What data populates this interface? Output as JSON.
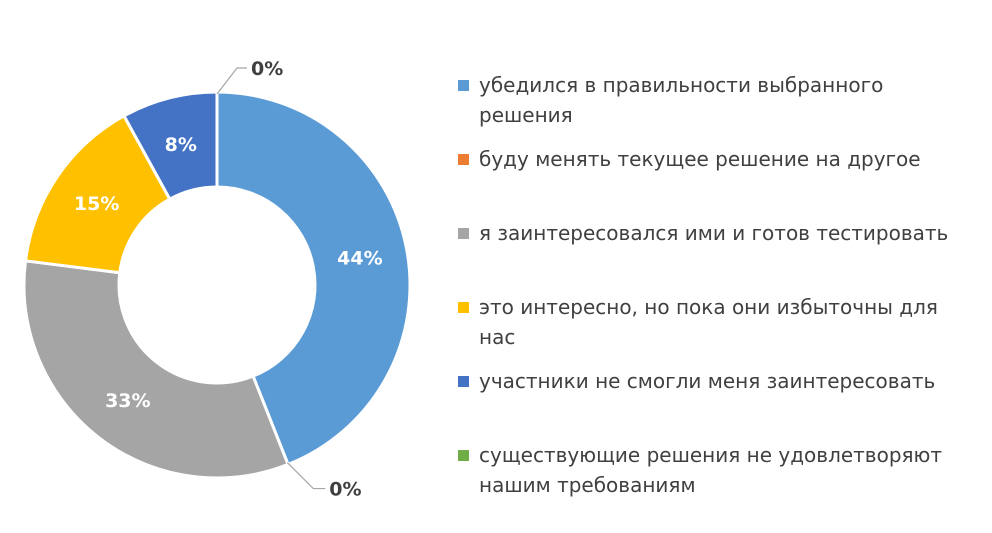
{
  "chart_data": {
    "type": "pie",
    "variant": "donut",
    "legend_position": "right",
    "series": [
      {
        "label": "убедился в правильности выбранного решения",
        "value": 44,
        "value_label": "44%",
        "color": "#5B9BD5"
      },
      {
        "label": "буду менять текущее решение на другое",
        "value": 0,
        "value_label": "0%",
        "color": "#ED7D31"
      },
      {
        "label": "я заинтересовался ими и готов тестировать",
        "value": 33,
        "value_label": "33%",
        "color": "#A5A5A5"
      },
      {
        "label": "это интересно, но пока они избыточны для нас",
        "value": 15,
        "value_label": "15%",
        "color": "#FFC000"
      },
      {
        "label": "участники не смогли меня заинтересовать",
        "value": 8,
        "value_label": "8%",
        "color": "#4472C4"
      },
      {
        "label": "существующие решения не удовлетворяют нашим требованиям",
        "value": 0,
        "value_label": "0%",
        "color": "#70AD47"
      }
    ]
  }
}
